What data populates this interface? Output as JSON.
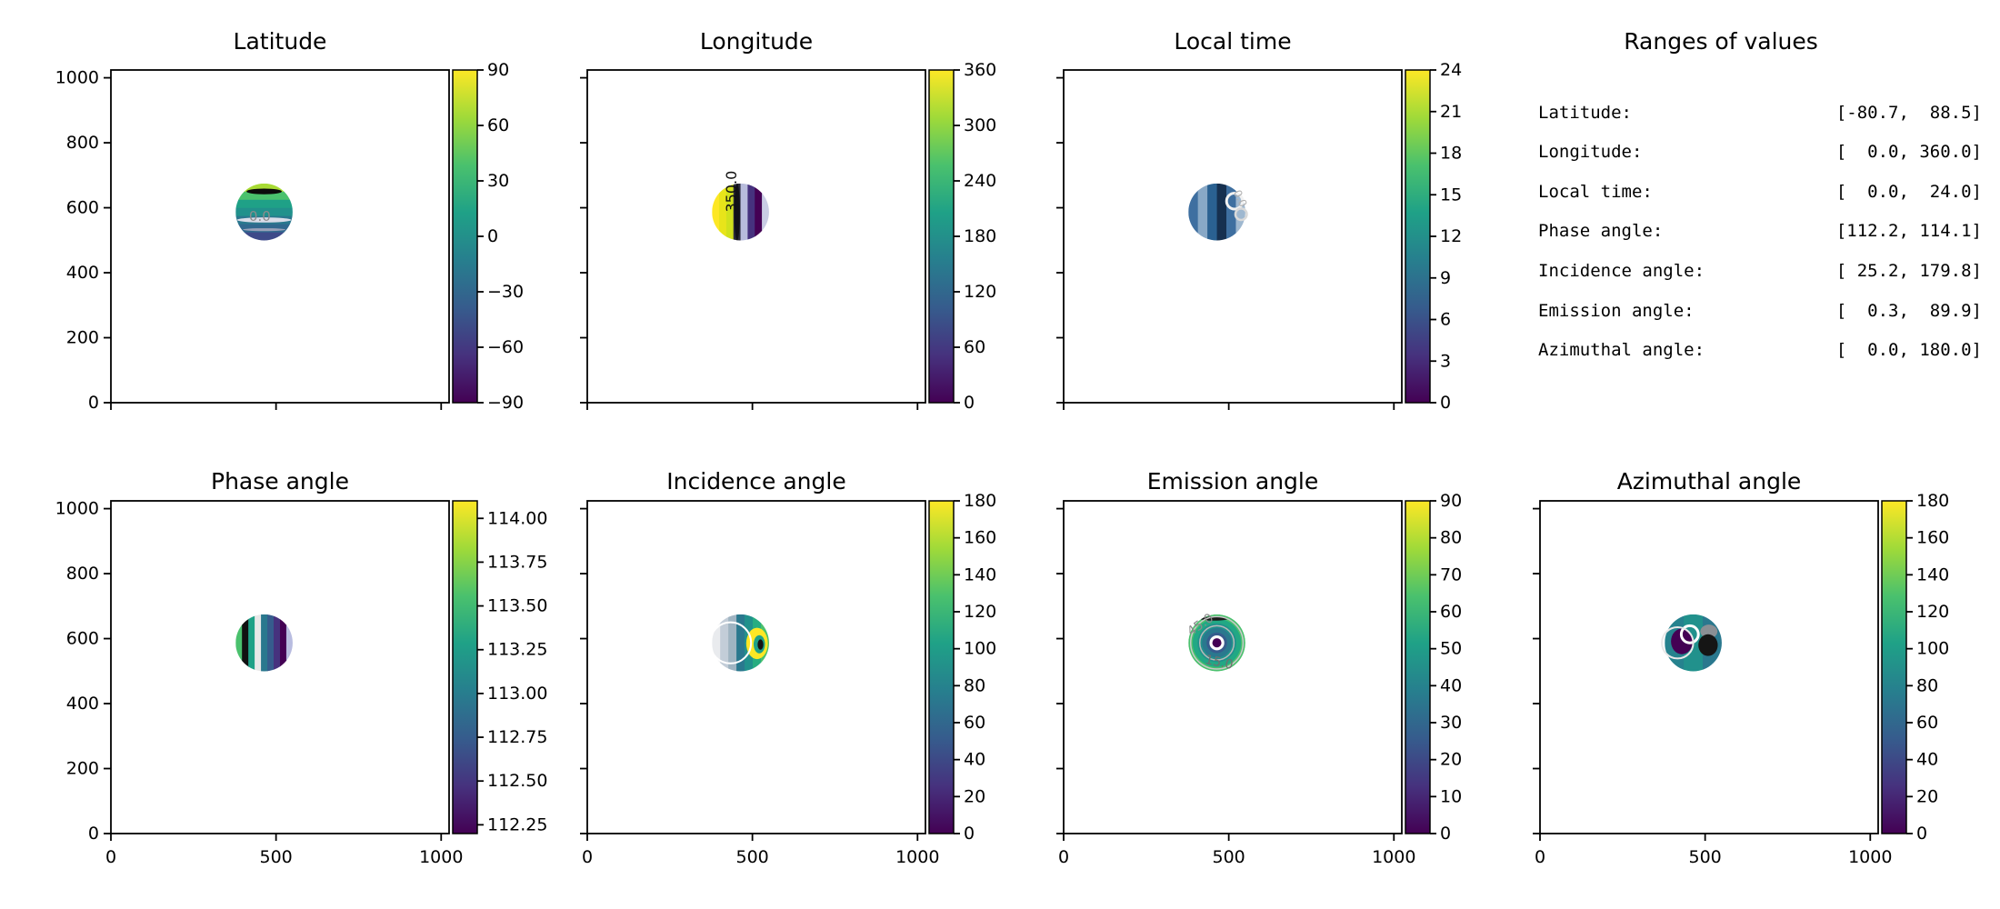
{
  "figure": {
    "background": "#ffffff",
    "colormap_name": "viridis"
  },
  "viridis": [
    "#440154",
    "#46327e",
    "#365c8d",
    "#277f8e",
    "#1fa187",
    "#4ac16d",
    "#a0da39",
    "#fde725"
  ],
  "chart_data": [
    {
      "key": "latitude",
      "type": "heatmap",
      "title": "Latitude",
      "row": 0,
      "col": 0,
      "value_range": [
        -80.7,
        88.5
      ],
      "xlim": [
        0,
        1024
      ],
      "ylim": [
        0,
        1024
      ],
      "x_ticks": [
        0,
        500,
        1000
      ],
      "x_tick_labels": [
        "0",
        "500",
        "1000"
      ],
      "y_ticks": [
        0,
        200,
        400,
        600,
        800,
        1000
      ],
      "y_tick_labels": [
        "0",
        "200",
        "400",
        "600",
        "800",
        "1000"
      ],
      "show_x_labels": false,
      "show_y_labels": true,
      "colorbar": {
        "min": -90,
        "max": 90,
        "tick_values": [
          90,
          60,
          30,
          0,
          -30,
          -60,
          -90
        ],
        "tick_labels": [
          "90",
          "60",
          "30",
          "0",
          "−30",
          "−60",
          "−90"
        ]
      },
      "disk": {
        "cx": 464,
        "cy": 587,
        "r": 87,
        "stripes": {
          "orientation": "h",
          "colors": [
            "#a8db34",
            "#4ac16d",
            "#1fa187",
            "#21918c",
            "#2a788e",
            "#31688e",
            "#3e4a89"
          ]
        },
        "blobs": [
          {
            "dxf": 0,
            "dyf": -0.72,
            "rxf": 0.62,
            "ryf": 0.1,
            "color": "#0b0b0b"
          },
          {
            "dxf": 0,
            "dyf": 0.28,
            "rxf": 0.95,
            "ryf": 0.09,
            "color": "#d9dce8"
          },
          {
            "dxf": 0,
            "dyf": 0.62,
            "rxf": 0.75,
            "ryf": 0.05,
            "color": "#9aa0b8"
          }
        ],
        "rings": [],
        "labels": [
          {
            "text": "0.0",
            "dxf": -0.15,
            "dyf": 0.32,
            "rot": 0,
            "color": "#8c8c8c",
            "size": 15
          }
        ]
      }
    },
    {
      "key": "longitude",
      "type": "heatmap",
      "title": "Longitude",
      "row": 0,
      "col": 1,
      "value_range": [
        0.0,
        360.0
      ],
      "xlim": [
        0,
        1024
      ],
      "ylim": [
        0,
        1024
      ],
      "x_ticks": [
        0,
        500,
        1000
      ],
      "x_tick_labels": [
        "0",
        "500",
        "1000"
      ],
      "y_ticks": [
        0,
        200,
        400,
        600,
        800,
        1000
      ],
      "y_tick_labels": [
        "0",
        "200",
        "400",
        "600",
        "800",
        "1000"
      ],
      "show_x_labels": false,
      "show_y_labels": false,
      "colorbar": {
        "min": 0,
        "max": 360,
        "tick_values": [
          360,
          300,
          240,
          180,
          120,
          60,
          0
        ],
        "tick_labels": [
          "360",
          "300",
          "240",
          "180",
          "120",
          "60",
          "0"
        ]
      },
      "disk": {
        "cx": 464,
        "cy": 587,
        "r": 87,
        "stripes": {
          "orientation": "v",
          "colors": [
            "#fde725",
            "#e8e41a",
            "#d0e11c",
            "#2a2a3a",
            "#b8bcdc",
            "#46327e",
            "#440154",
            "#c9cde4"
          ]
        },
        "blobs": [
          {
            "dxf": -0.12,
            "dyf": 0,
            "rxf": 0.1,
            "ryf": 1.0,
            "color": "#101018"
          }
        ],
        "rings": [],
        "labels": [
          {
            "text": "350.0",
            "dxf": -0.14,
            "dyf": -0.72,
            "rot": -90,
            "color": "#111111",
            "size": 16
          }
        ]
      }
    },
    {
      "key": "local_time",
      "type": "heatmap",
      "title": "Local time",
      "row": 0,
      "col": 2,
      "value_range": [
        0.0,
        24.0
      ],
      "xlim": [
        0,
        1024
      ],
      "ylim": [
        0,
        1024
      ],
      "x_ticks": [
        0,
        500,
        1000
      ],
      "x_tick_labels": [
        "0",
        "500",
        "1000"
      ],
      "y_ticks": [
        0,
        200,
        400,
        600,
        800,
        1000
      ],
      "y_tick_labels": [
        "0",
        "200",
        "400",
        "600",
        "800",
        "1000"
      ],
      "show_x_labels": false,
      "show_y_labels": false,
      "colorbar": {
        "min": 0,
        "max": 24,
        "tick_values": [
          24,
          21,
          18,
          15,
          12,
          9,
          6,
          3,
          0
        ],
        "tick_labels": [
          "24",
          "21",
          "18",
          "15",
          "12",
          "9",
          "6",
          "3",
          "0"
        ]
      },
      "disk": {
        "cx": 464,
        "cy": 587,
        "r": 87,
        "stripes": {
          "orientation": "v",
          "colors": [
            "#3e6fa0",
            "#88a8c6",
            "#2a6191",
            "#16304f",
            "#3e6fa0",
            "#9fb8d0"
          ]
        },
        "blobs": [],
        "rings": [
          {
            "dxf": 0.62,
            "dyf": -0.38,
            "rf": 0.28,
            "color": "#f2f2f2",
            "w": 3
          },
          {
            "dxf": 0.85,
            "dyf": 0.08,
            "rf": 0.2,
            "color": "#d9d9d9",
            "w": 2.5
          }
        ],
        "labels": [
          {
            "text": "0.0",
            "dxf": 0.7,
            "dyf": -0.42,
            "rot": 65,
            "color": "#b0b0b0",
            "size": 12
          }
        ]
      }
    },
    {
      "key": "phase_angle",
      "type": "heatmap",
      "title": "Phase angle",
      "row": 1,
      "col": 0,
      "value_range": [
        112.2,
        114.1
      ],
      "xlim": [
        0,
        1024
      ],
      "ylim": [
        0,
        1024
      ],
      "x_ticks": [
        0,
        500,
        1000
      ],
      "x_tick_labels": [
        "0",
        "500",
        "1000"
      ],
      "y_ticks": [
        0,
        200,
        400,
        600,
        800,
        1000
      ],
      "y_tick_labels": [
        "0",
        "200",
        "400",
        "600",
        "800",
        "1000"
      ],
      "show_x_labels": true,
      "show_y_labels": true,
      "colorbar": {
        "min": 112.2,
        "max": 114.1,
        "tick_values": [
          114.0,
          113.75,
          113.5,
          113.25,
          113.0,
          112.75,
          112.5,
          112.25
        ],
        "tick_labels": [
          "114.00",
          "113.75",
          "113.50",
          "113.25",
          "113.00",
          "112.75",
          "112.50",
          "112.25"
        ]
      },
      "disk": {
        "cx": 464,
        "cy": 587,
        "r": 87,
        "stripes": {
          "orientation": "v",
          "colors": [
            "#4ac16d",
            "#111111",
            "#1fa187",
            "#e8e8e8",
            "#2a788e",
            "#365c8d",
            "#46327e",
            "#440154",
            "#b8bce0"
          ]
        },
        "blobs": [],
        "rings": [],
        "labels": []
      }
    },
    {
      "key": "incidence_angle",
      "type": "heatmap",
      "title": "Incidence angle",
      "row": 1,
      "col": 1,
      "value_range": [
        25.2,
        179.8
      ],
      "xlim": [
        0,
        1024
      ],
      "ylim": [
        0,
        1024
      ],
      "x_ticks": [
        0,
        500,
        1000
      ],
      "x_tick_labels": [
        "0",
        "500",
        "1000"
      ],
      "y_ticks": [
        0,
        200,
        400,
        600,
        800,
        1000
      ],
      "y_tick_labels": [
        "0",
        "200",
        "400",
        "600",
        "800",
        "1000"
      ],
      "show_x_labels": true,
      "show_y_labels": false,
      "colorbar": {
        "min": 0,
        "max": 180,
        "tick_values": [
          180,
          160,
          140,
          120,
          100,
          80,
          60,
          40,
          20,
          0
        ],
        "tick_labels": [
          "180",
          "160",
          "140",
          "120",
          "100",
          "80",
          "60",
          "40",
          "20",
          "0"
        ]
      },
      "disk": {
        "cx": 464,
        "cy": 587,
        "r": 87,
        "stripes": {
          "orientation": "v",
          "colors": [
            "#e9ebee",
            "#c3cdd8",
            "#9fb4c2",
            "#2a788e",
            "#21918c",
            "#27ad81",
            "#4ac16d"
          ]
        },
        "blobs": [
          {
            "dxf": 0.58,
            "dyf": 0.02,
            "rxf": 0.38,
            "ryf": 0.55,
            "color": "#fde725"
          },
          {
            "dxf": 0.66,
            "dyf": 0.05,
            "rxf": 0.2,
            "ryf": 0.32,
            "color": "#1fa187"
          },
          {
            "dxf": 0.7,
            "dyf": 0.06,
            "rxf": 0.1,
            "ryf": 0.18,
            "color": "#141414"
          }
        ],
        "rings": [
          {
            "dxf": -0.35,
            "dyf": 0,
            "rf": 0.72,
            "color": "#ffffff",
            "w": 2
          }
        ],
        "labels": []
      }
    },
    {
      "key": "emission_angle",
      "type": "heatmap",
      "title": "Emission angle",
      "row": 1,
      "col": 2,
      "value_range": [
        0.3,
        89.9
      ],
      "xlim": [
        0,
        1024
      ],
      "ylim": [
        0,
        1024
      ],
      "x_ticks": [
        0,
        500,
        1000
      ],
      "x_tick_labels": [
        "0",
        "500",
        "1000"
      ],
      "y_ticks": [
        0,
        200,
        400,
        600,
        800,
        1000
      ],
      "y_tick_labels": [
        "0",
        "200",
        "400",
        "600",
        "800",
        "1000"
      ],
      "show_x_labels": true,
      "show_y_labels": false,
      "colorbar": {
        "min": 0,
        "max": 90,
        "tick_values": [
          90,
          80,
          70,
          60,
          50,
          40,
          30,
          20,
          10,
          0
        ],
        "tick_labels": [
          "90",
          "80",
          "70",
          "60",
          "50",
          "40",
          "30",
          "20",
          "10",
          "0"
        ]
      },
      "disk": {
        "cx": 464,
        "cy": 587,
        "r": 87,
        "discs": [
          {
            "rf": 1.0,
            "color": "#4ac16d"
          },
          {
            "rf": 0.85,
            "color": "#22a884"
          },
          {
            "rf": 0.68,
            "color": "#21918c"
          },
          {
            "rf": 0.52,
            "color": "#2a788e"
          },
          {
            "rf": 0.36,
            "color": "#365c8d"
          },
          {
            "rf": 0.26,
            "color": "#ffffff"
          },
          {
            "rf": 0.16,
            "color": "#440154"
          }
        ],
        "blobs": [
          {
            "dxf": -0.1,
            "dyf": -0.85,
            "rxf": 0.5,
            "ryf": 0.07,
            "color": "#1a1a1a"
          }
        ],
        "rings": [
          {
            "dxf": 0,
            "dyf": 0,
            "rf": 0.6,
            "color": "#b9b9b9",
            "w": 1.5
          },
          {
            "dxf": 0,
            "dyf": 0,
            "rf": 0.92,
            "color": "#c9c9c9",
            "w": 1.5
          }
        ],
        "labels": [
          {
            "text": "45.0",
            "dxf": -0.5,
            "dyf": -0.52,
            "rot": -35,
            "color": "#8a8a8a",
            "size": 14
          },
          {
            "text": "15.0",
            "dxf": 0.05,
            "dyf": 0.82,
            "rot": 12,
            "color": "#6f6f6f",
            "size": 14
          }
        ]
      }
    },
    {
      "key": "azimuthal_angle",
      "type": "heatmap",
      "title": "Azimuthal angle",
      "row": 1,
      "col": 3,
      "value_range": [
        0.0,
        180.0
      ],
      "xlim": [
        0,
        1024
      ],
      "ylim": [
        0,
        1024
      ],
      "x_ticks": [
        0,
        500,
        1000
      ],
      "x_tick_labels": [
        "0",
        "500",
        "1000"
      ],
      "y_ticks": [
        0,
        200,
        400,
        600,
        800,
        1000
      ],
      "y_tick_labels": [
        "0",
        "200",
        "400",
        "600",
        "800",
        "1000"
      ],
      "show_x_labels": true,
      "show_y_labels": false,
      "colorbar": {
        "min": 0,
        "max": 180,
        "tick_values": [
          180,
          160,
          140,
          120,
          100,
          80,
          60,
          40,
          20,
          0
        ],
        "tick_labels": [
          "180",
          "160",
          "140",
          "120",
          "100",
          "80",
          "60",
          "40",
          "20",
          "0"
        ]
      },
      "disk": {
        "cx": 464,
        "cy": 587,
        "r": 87,
        "stripes": {
          "orientation": "v",
          "colors": [
            "#26828e",
            "#21918c",
            "#2a788e"
          ]
        },
        "blobs": [
          {
            "dxf": -0.4,
            "dyf": -0.05,
            "rxf": 0.38,
            "ryf": 0.45,
            "color": "#440154"
          },
          {
            "dxf": 0.55,
            "dyf": -0.4,
            "rxf": 0.3,
            "ryf": 0.24,
            "color": "#8a8f94"
          },
          {
            "dxf": 0.52,
            "dyf": 0.08,
            "rxf": 0.34,
            "ryf": 0.38,
            "color": "#151515"
          }
        ],
        "rings": [
          {
            "dxf": -0.12,
            "dyf": -0.3,
            "rf": 0.3,
            "color": "#ffffff",
            "w": 3
          },
          {
            "dxf": -0.55,
            "dyf": 0.0,
            "rf": 0.55,
            "color": "#e8e8e8",
            "w": 2
          }
        ],
        "labels": []
      }
    }
  ],
  "ranges_panel": {
    "title": "Ranges of values",
    "rows": [
      {
        "label": "Latitude:",
        "value": "[-80.7,  88.5]"
      },
      {
        "label": "Longitude:",
        "value": "[  0.0, 360.0]"
      },
      {
        "label": "Local time:",
        "value": "[  0.0,  24.0]"
      },
      {
        "label": "Phase angle:",
        "value": "[112.2, 114.1]"
      },
      {
        "label": "Incidence angle:",
        "value": "[ 25.2, 179.8]"
      },
      {
        "label": "Emission angle:",
        "value": "[  0.3,  89.9]"
      },
      {
        "label": "Azimuthal angle:",
        "value": "[  0.0, 180.0]"
      }
    ]
  }
}
